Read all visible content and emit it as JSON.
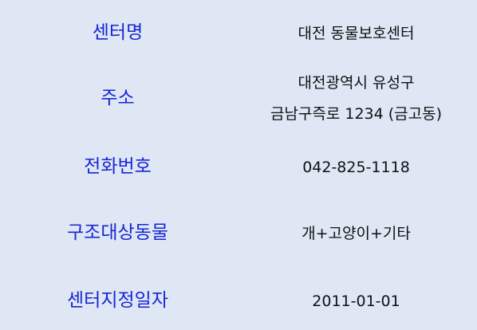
{
  "rows": [
    {
      "label": "센터명",
      "value": "대전 동물보호센터"
    },
    {
      "label": "주소",
      "value_lines": [
        "대전광역시 유성구",
        "금남구즉로 1234 (금고동)"
      ]
    },
    {
      "label": "전화번호",
      "value": "042-825-1118"
    },
    {
      "label": "구조대상동물",
      "value": "개+고양이+기타"
    },
    {
      "label": "센터지정일자",
      "value": "2011-01-01"
    }
  ]
}
